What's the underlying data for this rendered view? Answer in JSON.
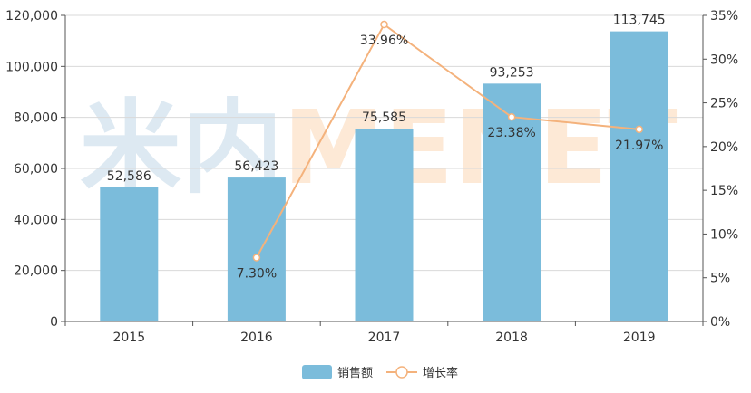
{
  "chart_data": {
    "type": "bar",
    "categories": [
      "2015",
      "2016",
      "2017",
      "2018",
      "2019"
    ],
    "series": [
      {
        "name": "销售额",
        "type": "bar",
        "axis": "left",
        "values": [
          52586,
          56423,
          75585,
          93253,
          113745
        ],
        "labels": [
          "52,586",
          "56,423",
          "75,585",
          "93,253",
          "113,745"
        ],
        "color": "#7bbcdb"
      },
      {
        "name": "增长率",
        "type": "line",
        "axis": "right",
        "values": [
          null,
          7.3,
          33.96,
          23.38,
          21.97
        ],
        "labels": [
          "",
          "7.30%",
          "33.96%",
          "23.38%",
          "21.97%"
        ],
        "color": "#f4b27c"
      }
    ],
    "y_left": {
      "lim": [
        0,
        120000
      ],
      "ticks": [
        0,
        20000,
        40000,
        60000,
        80000,
        100000,
        120000
      ],
      "tick_labels": [
        "0",
        "20,000",
        "40,000",
        "60,000",
        "80,000",
        "100,000",
        "120,000"
      ]
    },
    "y_right": {
      "lim": [
        0,
        35
      ],
      "ticks": [
        0,
        5,
        10,
        15,
        20,
        25,
        30,
        35
      ],
      "tick_labels": [
        "0%",
        "5%",
        "10%",
        "15%",
        "20%",
        "25%",
        "30%",
        "35%"
      ]
    },
    "grid": true,
    "legend_position": "bottom-center",
    "watermark": "米内MENET"
  },
  "colors": {
    "axis": "#555555",
    "grid": "#d9d9d9",
    "text": "#333333",
    "watermark_blue": "#dde9f2",
    "watermark_orange": "#fde9d6"
  }
}
